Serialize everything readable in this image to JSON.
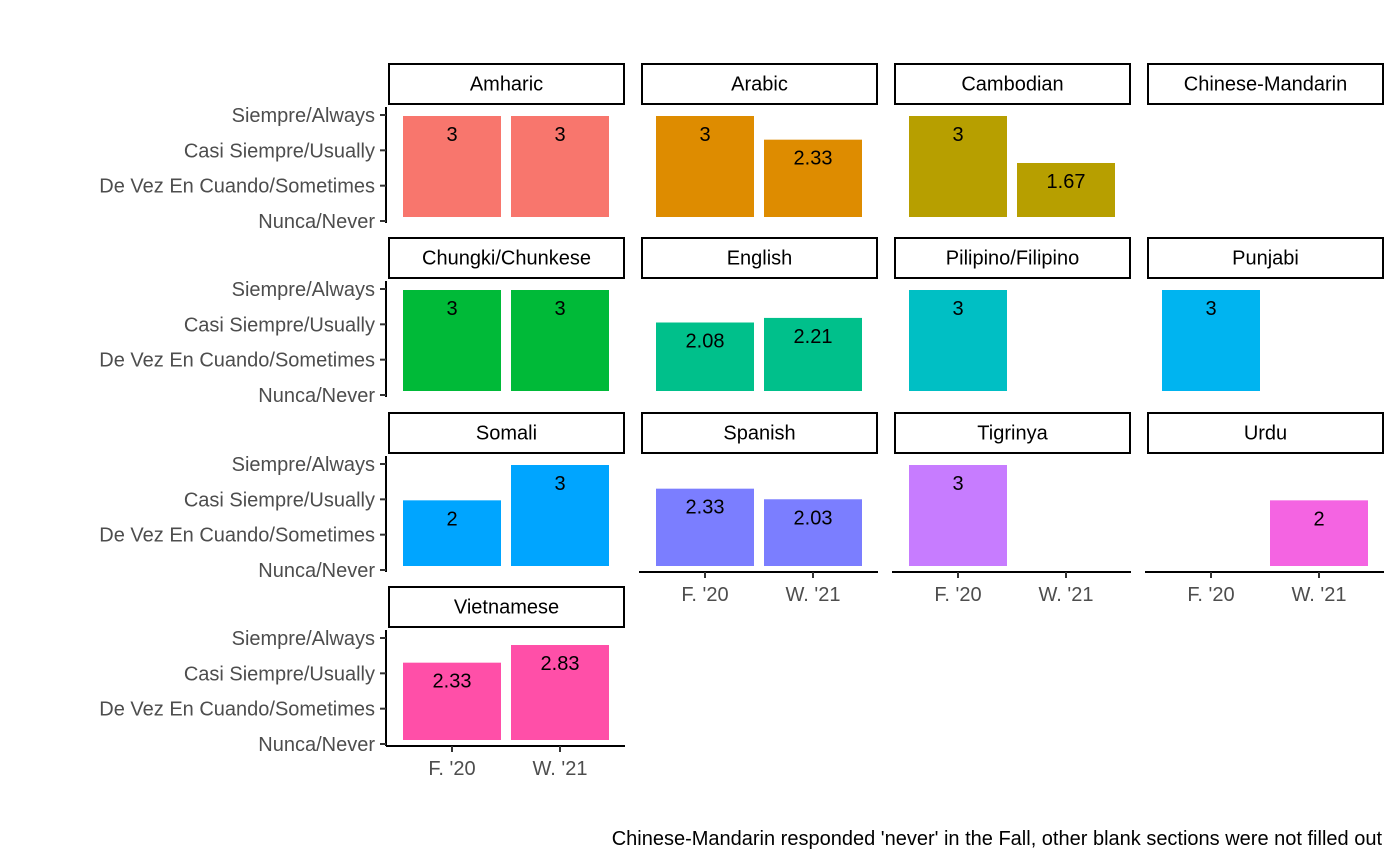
{
  "chart_data": {
    "type": "bar",
    "title": "",
    "xlabel": "",
    "ylabel": "",
    "x_categories": [
      "F. '20",
      "W. '21"
    ],
    "y_ticks": [
      {
        "value": 0,
        "label": "Nunca/Never"
      },
      {
        "value": 1,
        "label": "De Vez En Cuando/Sometimes"
      },
      {
        "value": 2,
        "label": "Casi Siempre/Usually"
      },
      {
        "value": 3,
        "label": "Siempre/Always"
      }
    ],
    "ylim": [
      0,
      3
    ],
    "facets": [
      {
        "name": "Amharic",
        "color": "#F8766D",
        "values": [
          3,
          3
        ],
        "labels": [
          "3",
          "3"
        ]
      },
      {
        "name": "Arabic",
        "color": "#DE8C00",
        "values": [
          3,
          2.33
        ],
        "labels": [
          "3",
          "2.33"
        ]
      },
      {
        "name": "Cambodian",
        "color": "#B79F00",
        "values": [
          3,
          1.67
        ],
        "labels": [
          "3",
          "1.67"
        ]
      },
      {
        "name": "Chinese-Mandarin",
        "color": "#9CA700",
        "values": [
          null,
          null
        ],
        "labels": [
          "",
          ""
        ]
      },
      {
        "name": "Chungki/Chunkese",
        "color": "#00BA38",
        "values": [
          3,
          3
        ],
        "labels": [
          "3",
          "3"
        ]
      },
      {
        "name": "English",
        "color": "#00C08B",
        "values": [
          2.08,
          2.21
        ],
        "labels": [
          "2.08",
          "2.21"
        ]
      },
      {
        "name": "Pilipino/Filipino",
        "color": "#00BFC4",
        "values": [
          3,
          null
        ],
        "labels": [
          "3",
          ""
        ]
      },
      {
        "name": "Punjabi",
        "color": "#00B4F0",
        "values": [
          3,
          null
        ],
        "labels": [
          "3",
          ""
        ]
      },
      {
        "name": "Somali",
        "color": "#00A5FF",
        "values": [
          2,
          3
        ],
        "labels": [
          "2",
          "3"
        ]
      },
      {
        "name": "Spanish",
        "color": "#7B7EFF",
        "values": [
          2.33,
          2.03
        ],
        "labels": [
          "2.33",
          "2.03"
        ]
      },
      {
        "name": "Tigrinya",
        "color": "#C77CFF",
        "values": [
          3,
          null
        ],
        "labels": [
          "3",
          ""
        ]
      },
      {
        "name": "Urdu",
        "color": "#F464E2",
        "values": [
          null,
          2
        ],
        "labels": [
          "",
          "2"
        ]
      },
      {
        "name": "Vietnamese",
        "color": "#FF4FA8",
        "values": [
          2.33,
          2.83
        ],
        "labels": [
          "2.33",
          "2.83"
        ]
      }
    ],
    "caption": "Chinese-Mandarin responded 'never' in the Fall, other blank sections were not filled out",
    "grid": false,
    "legend": "none"
  }
}
